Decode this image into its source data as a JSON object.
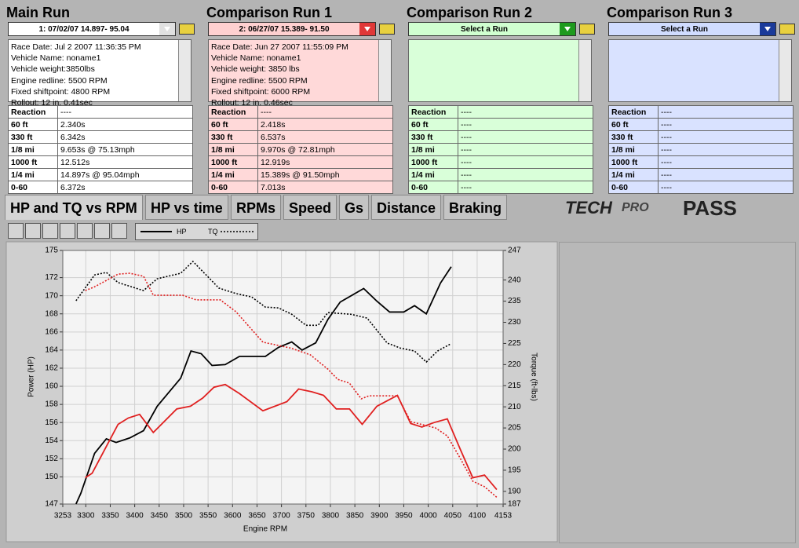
{
  "runs": [
    {
      "title": "Main Run",
      "selector": "1:  07/02/07 14.897- 95.04",
      "info": [
        "Race Date: Jul 2 2007  11:36:35 PM",
        "Vehicle Name: noname1",
        "Vehicle weight:3850lbs",
        "Engine redline: 5500 RPM",
        "Fixed shiftpoint: 4800 RPM",
        "Rollout: 12 in. 0.41sec"
      ],
      "rows": [
        [
          "Reaction",
          "----"
        ],
        [
          "60 ft",
          "2.340s"
        ],
        [
          "330 ft",
          "6.342s"
        ],
        [
          "1/8 mi",
          "9.653s @ 75.13mph"
        ],
        [
          "1000 ft",
          "12.512s"
        ],
        [
          "1/4 mi",
          "14.897s @ 95.04mph"
        ],
        [
          "0-60",
          "6.372s"
        ]
      ]
    },
    {
      "title": "Comparison Run 1",
      "selector": "2:  06/27/07 15.389- 91.50",
      "info": [
        "Race Date: Jun 27 2007  11:55:09 PM",
        "Vehicle Name: noname1",
        "Vehicle weight: 3850 lbs",
        "Engine redline: 5500 RPM",
        "Fixed shiftpoint: 6000 RPM",
        "Rollout: 12 in. 0.46sec"
      ],
      "rows": [
        [
          "Reaction",
          "----"
        ],
        [
          "60 ft",
          "2.418s"
        ],
        [
          "330 ft",
          "6.537s"
        ],
        [
          "1/8 mi",
          "9.970s @ 72.81mph"
        ],
        [
          "1000 ft",
          "12.919s"
        ],
        [
          "1/4 mi",
          "15.389s @ 91.50mph"
        ],
        [
          "0-60",
          "7.013s"
        ]
      ]
    },
    {
      "title": "Comparison Run 2",
      "selector": "Select a Run",
      "info": [],
      "rows": [
        [
          "Reaction",
          "----"
        ],
        [
          "60 ft",
          "----"
        ],
        [
          "330 ft",
          "----"
        ],
        [
          "1/8 mi",
          "----"
        ],
        [
          "1000 ft",
          "----"
        ],
        [
          "1/4 mi",
          "----"
        ],
        [
          "0-60",
          "----"
        ]
      ]
    },
    {
      "title": "Comparison Run 3",
      "selector": "Select a Run",
      "info": [],
      "rows": [
        [
          "Reaction",
          "----"
        ],
        [
          "60 ft",
          "----"
        ],
        [
          "330 ft",
          "----"
        ],
        [
          "1/8 mi",
          "----"
        ],
        [
          "1000 ft",
          "----"
        ],
        [
          "1/4 mi",
          "----"
        ],
        [
          "0-60",
          "----"
        ]
      ]
    }
  ],
  "tabs": [
    "HP and TQ vs RPM",
    "HP vs time",
    "RPMs",
    "Speed",
    "Gs",
    "Distance",
    "Braking"
  ],
  "logo": {
    "brand": "TECH",
    "sub": "PRO",
    "product": "PASS"
  },
  "legend": {
    "solid": "HP",
    "dotted": "TQ"
  },
  "chart_data": {
    "type": "line",
    "xlabel": "Engine RPM",
    "ylabel": "Power (HP)",
    "y2label": "Torque (ft-lbs)",
    "xlim": [
      3253,
      4153
    ],
    "xticks": [
      3253,
      3300,
      3350,
      3400,
      3450,
      3500,
      3550,
      3600,
      3650,
      3700,
      3750,
      3800,
      3850,
      3900,
      3950,
      4000,
      4050,
      4100,
      4153
    ],
    "ylim": [
      147,
      175
    ],
    "yticks": [
      147,
      150,
      152,
      154,
      156,
      158,
      160,
      162,
      164,
      166,
      168,
      170,
      172,
      175
    ],
    "y2lim": [
      187,
      247
    ],
    "y2ticks": [
      187,
      190,
      195,
      200,
      205,
      210,
      215,
      220,
      225,
      230,
      235,
      240,
      247
    ],
    "grid": true,
    "series": [
      {
        "color": "#000000",
        "style": "solid",
        "x": [
          3280,
          3290,
          3318,
          3342,
          3362,
          3390,
          3418,
          3446,
          3494,
          3515,
          3536,
          3558,
          3585,
          3614,
          3667,
          3694,
          3721,
          3742,
          3770,
          3795,
          3820,
          3868,
          3895,
          3921,
          3950,
          3972,
          3996,
          4025,
          4047
        ],
        "values": [
          147,
          148.2,
          152.6,
          154.2,
          153.8,
          154.3,
          155.1,
          157.8,
          160.9,
          163.9,
          163.6,
          162.3,
          162.4,
          163.3,
          163.3,
          164.3,
          164.9,
          164,
          164.8,
          167.4,
          169.3,
          170.8,
          169.4,
          168.2,
          168.2,
          168.9,
          168,
          171.4,
          173.2
        ]
      },
      {
        "color": "#e02020",
        "style": "solid",
        "x": [
          3299,
          3313,
          3366,
          3387,
          3410,
          3438,
          3486,
          3514,
          3539,
          3562,
          3585,
          3614,
          3662,
          3711,
          3735,
          3762,
          3786,
          3812,
          3839,
          3865,
          3895,
          3937,
          3964,
          3987,
          4012,
          4039,
          4065,
          4091,
          4115,
          4140
        ],
        "values": [
          149.9,
          150.4,
          155.8,
          156.5,
          156.9,
          154.9,
          157.5,
          157.8,
          158.7,
          159.9,
          160.2,
          159.2,
          157.3,
          158.3,
          159.7,
          159.4,
          159,
          157.5,
          157.5,
          155.8,
          157.8,
          159,
          155.9,
          155.5,
          156,
          156.4,
          153.1,
          149.9,
          150.2,
          148.6
        ]
      },
      {
        "color": "#000000",
        "style": "dotted",
        "axis": "y2",
        "x": [
          3280,
          3318,
          3342,
          3366,
          3418,
          3446,
          3494,
          3519,
          3546,
          3572,
          3607,
          3639,
          3667,
          3694,
          3721,
          3750,
          3775,
          3795,
          3842,
          3875,
          3916,
          3943,
          3972,
          3996,
          4019,
          4046
        ],
        "values": [
          235.1,
          241.2,
          241.8,
          239.4,
          237.5,
          240.3,
          241.6,
          244.4,
          241.2,
          238.1,
          236.8,
          236,
          233.6,
          233.4,
          231.9,
          229.3,
          229.3,
          232.3,
          231.9,
          231,
          225.1,
          223.9,
          223.2,
          220.6,
          223.2,
          224.9
        ]
      },
      {
        "color": "#e02020",
        "style": "dotted",
        "axis": "y2",
        "x": [
          3299,
          3318,
          3366,
          3390,
          3418,
          3438,
          3498,
          3526,
          3575,
          3607,
          3662,
          3719,
          3759,
          3795,
          3815,
          3839,
          3863,
          3879,
          3937,
          3964,
          3991,
          4015,
          4039,
          4065,
          4091,
          4115,
          4140
        ],
        "values": [
          237.5,
          238.4,
          241.4,
          241.6,
          240.9,
          236.4,
          236.4,
          235.3,
          235.3,
          232.5,
          225.3,
          223.9,
          222.3,
          218.9,
          216.5,
          215.6,
          211.9,
          212.6,
          212.6,
          206.5,
          205.7,
          205,
          203.1,
          197.9,
          192.4,
          191.1,
          188.6
        ]
      }
    ]
  }
}
